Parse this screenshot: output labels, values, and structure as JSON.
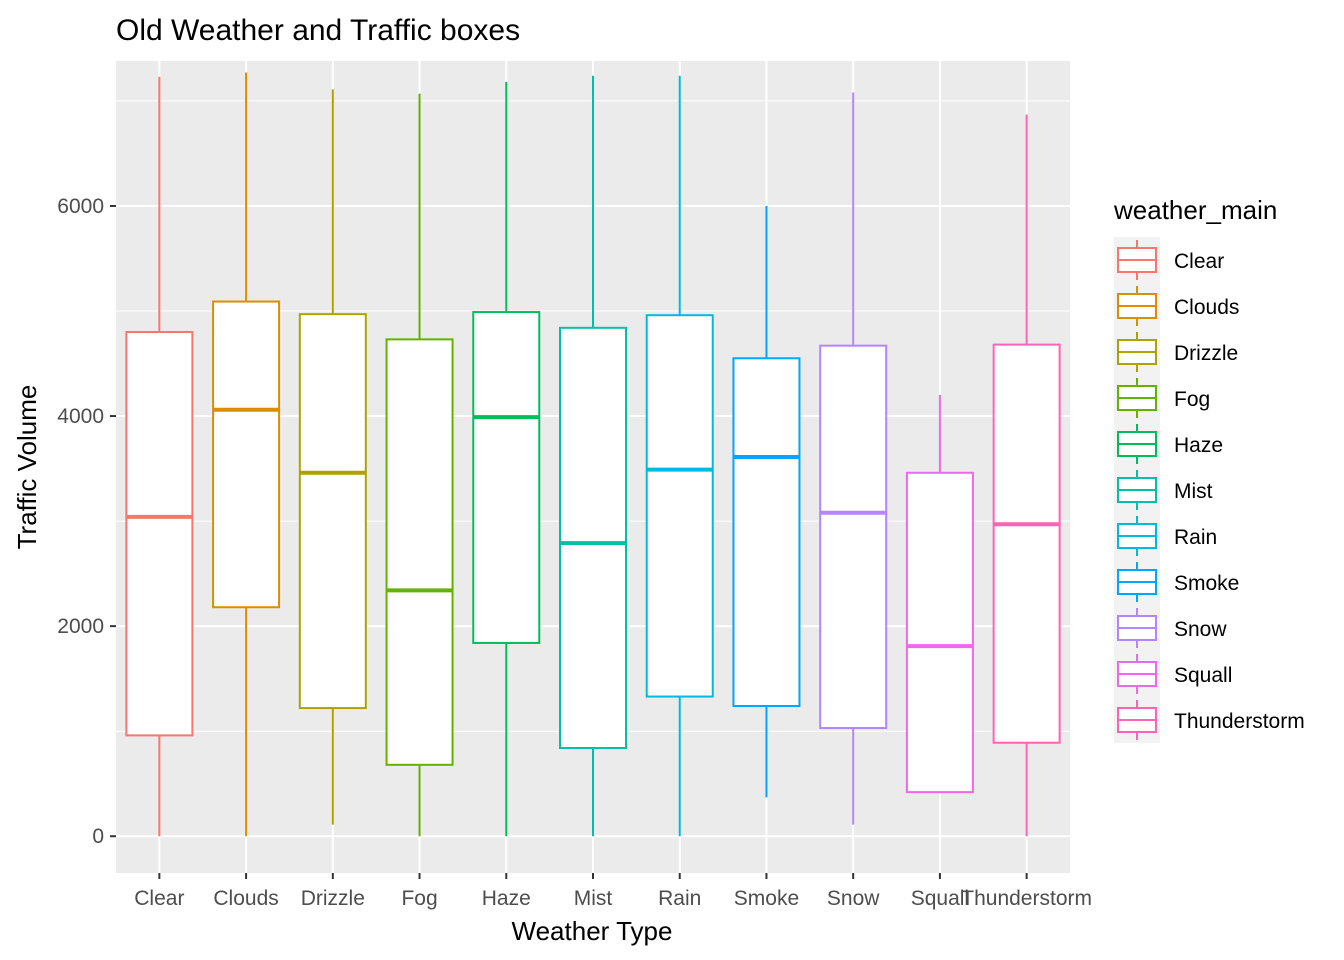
{
  "chart_data": {
    "type": "boxplot",
    "title": "Old Weather and Traffic boxes",
    "xlabel": "Weather Type",
    "ylabel": "Traffic Volume",
    "ylim": [
      -350,
      7380
    ],
    "yticks": [
      0,
      2000,
      4000,
      6000
    ],
    "grid": true,
    "legend": {
      "title": "weather_main",
      "position": "right"
    },
    "categories": [
      "Clear",
      "Clouds",
      "Drizzle",
      "Fog",
      "Haze",
      "Mist",
      "Rain",
      "Smoke",
      "Snow",
      "Squall",
      "Thunderstorm"
    ],
    "series": [
      {
        "name": "Clear",
        "color": "#F8766D",
        "min": 0,
        "q1": 960,
        "median": 3040,
        "q3": 4800,
        "max": 7230
      },
      {
        "name": "Clouds",
        "color": "#DB8E00",
        "min": 0,
        "q1": 2180,
        "median": 4060,
        "q3": 5090,
        "max": 7270
      },
      {
        "name": "Drizzle",
        "color": "#AEA200",
        "min": 110,
        "q1": 1220,
        "median": 3460,
        "q3": 4970,
        "max": 7110
      },
      {
        "name": "Fog",
        "color": "#64B200",
        "min": 0,
        "q1": 680,
        "median": 2340,
        "q3": 4730,
        "max": 7070
      },
      {
        "name": "Haze",
        "color": "#00BD5C",
        "min": 0,
        "q1": 1840,
        "median": 3990,
        "q3": 4990,
        "max": 7180
      },
      {
        "name": "Mist",
        "color": "#00C1A7",
        "min": 0,
        "q1": 840,
        "median": 2790,
        "q3": 4840,
        "max": 7240
      },
      {
        "name": "Rain",
        "color": "#00BADE",
        "min": 0,
        "q1": 1330,
        "median": 3490,
        "q3": 4960,
        "max": 7240
      },
      {
        "name": "Smoke",
        "color": "#00A6FF",
        "min": 370,
        "q1": 1240,
        "median": 3610,
        "q3": 4550,
        "max": 6000
      },
      {
        "name": "Snow",
        "color": "#B385FF",
        "min": 110,
        "q1": 1030,
        "median": 3080,
        "q3": 4670,
        "max": 7080
      },
      {
        "name": "Squall",
        "color": "#EF67EB",
        "min": 420,
        "q1": 420,
        "median": 1810,
        "q3": 3460,
        "max": 4200
      },
      {
        "name": "Thunderstorm",
        "color": "#FF63B6",
        "min": 0,
        "q1": 890,
        "median": 2970,
        "q3": 4680,
        "max": 6870
      }
    ]
  }
}
